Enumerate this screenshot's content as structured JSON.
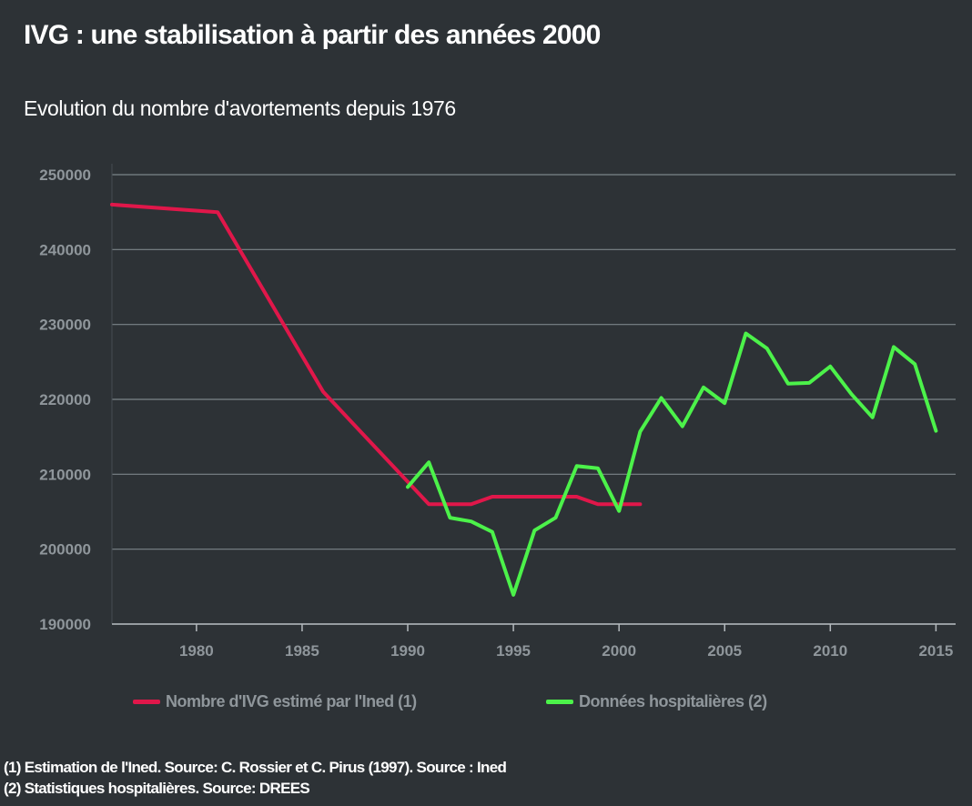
{
  "header": {
    "title": "IVG : une stabilisation à partir des années 2000",
    "subtitle": "Evolution du nombre d'avortements depuis 1976"
  },
  "colors": {
    "background": "#2d3236",
    "gridline": "#7d858a",
    "axis_text": "#8f969b",
    "ined_series": "#e0174a",
    "hospital_series": "#4cf24a"
  },
  "legend": {
    "ined_label": "Nombre d'IVG estimé par l'Ined (1)",
    "hospital_label": "Données hospitalières (2)"
  },
  "footnotes": {
    "note1": "(1) Estimation de l'Ined. Source: C. Rossier et C. Pirus (1997). Source : Ined",
    "note2": "(2) Statistiques hospitalières. Source: DREES"
  },
  "chart_data": {
    "type": "line",
    "title": "IVG : une stabilisation à partir des années 2000",
    "subtitle": "Evolution du nombre d'avortements depuis 1976",
    "xlabel": "",
    "ylabel": "",
    "xlim": [
      1976,
      2015.5
    ],
    "ylim": [
      190000,
      250000
    ],
    "xticks": [
      1980,
      1985,
      1990,
      1995,
      2000,
      2005,
      2010,
      2015
    ],
    "yticks": [
      190000,
      200000,
      210000,
      220000,
      230000,
      240000,
      250000
    ],
    "grid": "horizontal",
    "legend_position": "bottom",
    "series": [
      {
        "name": "Nombre d'IVG estimé par l'Ined (1)",
        "color": "#e0174a",
        "x": [
          1976,
          1981,
          1986,
          1991,
          1992,
          1993,
          1994,
          1995,
          1996,
          1997,
          1998,
          1999,
          2000,
          2001
        ],
        "y": [
          246000,
          245000,
          221000,
          206000,
          206000,
          206000,
          207000,
          207000,
          207000,
          207000,
          207000,
          206000,
          206000,
          206000
        ]
      },
      {
        "name": "Données hospitalières (2)",
        "color": "#4cf24a",
        "x": [
          1990,
          1991,
          1992,
          1993,
          1994,
          1995,
          1996,
          1997,
          1998,
          1999,
          2000,
          2001,
          2002,
          2003,
          2004,
          2005,
          2006,
          2007,
          2008,
          2009,
          2010,
          2011,
          2012,
          2013,
          2014,
          2015
        ],
        "y": [
          208300,
          211600,
          204200,
          203700,
          202300,
          193900,
          202500,
          204200,
          211100,
          210800,
          205100,
          215700,
          220200,
          216400,
          221600,
          219500,
          228800,
          226800,
          222100,
          222200,
          224400,
          220700,
          217600,
          227000,
          224700,
          215800
        ]
      }
    ]
  }
}
